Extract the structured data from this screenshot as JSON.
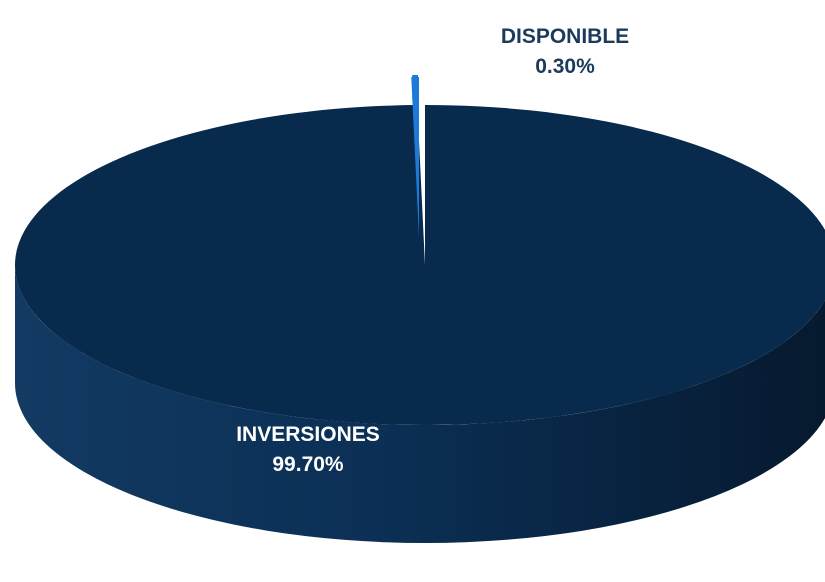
{
  "chart_data": {
    "type": "pie",
    "categories": [
      "INVERSIONES",
      "DISPONIBLE"
    ],
    "values": [
      99.7,
      0.3
    ],
    "value_labels": [
      "99.70%",
      "0.30%"
    ],
    "colors": [
      "#072a4d",
      "#1d7ad8"
    ],
    "title": "",
    "style": "3d-exploded"
  }
}
